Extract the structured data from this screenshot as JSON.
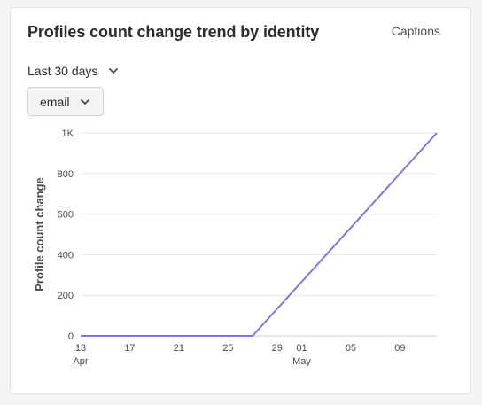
{
  "header": {
    "title": "Profiles count change trend by identity",
    "captions_label": "Captions"
  },
  "filters": {
    "date_range": "Last 30 days",
    "identity": "email"
  },
  "colors": {
    "series": "#7b79e0",
    "grid": "#e6e6e6"
  },
  "chart_data": {
    "type": "line",
    "ylabel": "Profile count change",
    "xlabel": "",
    "ylim": [
      0,
      1000
    ],
    "y_ticks": [
      "0",
      "200",
      "400",
      "600",
      "800",
      "1K"
    ],
    "x_ticks": [
      {
        "day": "13",
        "month": "Apr"
      },
      {
        "day": "17",
        "month": ""
      },
      {
        "day": "21",
        "month": ""
      },
      {
        "day": "25",
        "month": ""
      },
      {
        "day": "29",
        "month": ""
      },
      {
        "day": "01",
        "month": "May"
      },
      {
        "day": "05",
        "month": ""
      },
      {
        "day": "09",
        "month": ""
      }
    ],
    "x_dates": [
      "2024-04-13",
      "2024-04-17",
      "2024-04-21",
      "2024-04-25",
      "2024-04-29",
      "2024-05-01",
      "2024-05-05",
      "2024-05-09"
    ],
    "series": [
      {
        "x": [
          "2024-04-13",
          "2024-04-27",
          "2024-05-12"
        ],
        "values": [
          0,
          0,
          1000
        ]
      }
    ]
  }
}
